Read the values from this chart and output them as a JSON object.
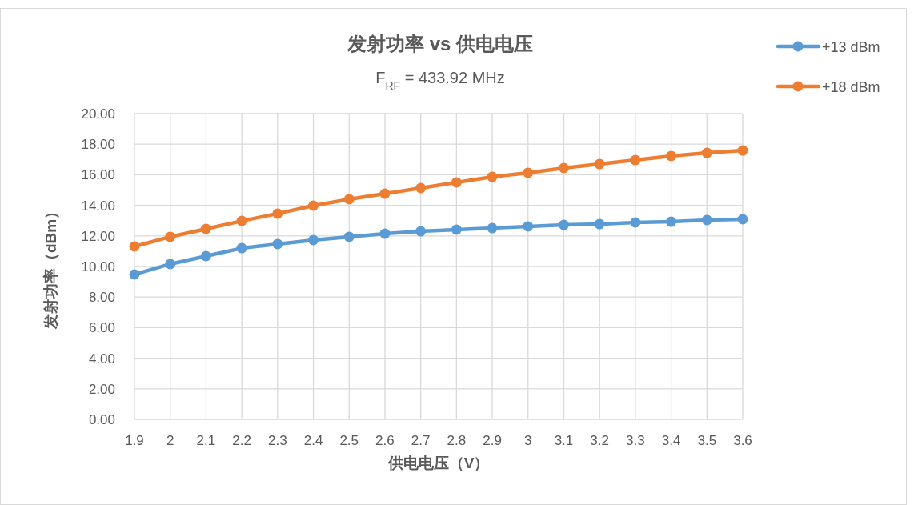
{
  "chart_data": {
    "type": "line",
    "title": "发射功率 vs 供电电压",
    "subtitle": "F$_{RF}$ = 433.92 MHz",
    "xlabel": "供电电压（V）",
    "ylabel": "发射功率（dBm）",
    "x": [
      1.9,
      2.0,
      2.1,
      2.2,
      2.3,
      2.4,
      2.5,
      2.6,
      2.7,
      2.8,
      2.9,
      3.0,
      3.1,
      3.2,
      3.3,
      3.4,
      3.5,
      3.6
    ],
    "series": [
      {
        "name": "+13 dBm",
        "color": "#5b9bd5",
        "values": [
          9.48,
          10.16,
          10.68,
          11.2,
          11.47,
          11.73,
          11.94,
          12.15,
          12.3,
          12.41,
          12.51,
          12.62,
          12.72,
          12.77,
          12.88,
          12.93,
          13.04,
          13.09
        ]
      },
      {
        "name": "+18 dBm",
        "color": "#ed7d31",
        "values": [
          11.31,
          11.94,
          12.46,
          12.98,
          13.46,
          13.98,
          14.4,
          14.76,
          15.13,
          15.5,
          15.86,
          16.13,
          16.44,
          16.7,
          16.96,
          17.23,
          17.43,
          17.59
        ]
      }
    ],
    "xlim": [
      1.9,
      3.6
    ],
    "xticks": [
      1.9,
      2,
      2.1,
      2.2,
      2.3,
      2.4,
      2.5,
      2.6,
      2.7,
      2.8,
      2.9,
      3,
      3.1,
      3.2,
      3.3,
      3.4,
      3.5,
      3.6
    ],
    "ylim": [
      0,
      20
    ],
    "yticks": [
      {
        "value": 0,
        "label": "0.00"
      },
      {
        "value": 2,
        "label": "2.00"
      },
      {
        "value": 4,
        "label": "4.00"
      },
      {
        "value": 6,
        "label": "6.00"
      },
      {
        "value": 8,
        "label": "8.00"
      },
      {
        "value": 10,
        "label": "10.00"
      },
      {
        "value": 12,
        "label": "12.00"
      },
      {
        "value": 14,
        "label": "14.00"
      },
      {
        "value": 16,
        "label": "16.00"
      },
      {
        "value": 18,
        "label": "18.00"
      },
      {
        "value": 20,
        "label": "20.00"
      }
    ],
    "grid": true,
    "legend": "top right",
    "marker": "circle",
    "line_style": "solid"
  }
}
